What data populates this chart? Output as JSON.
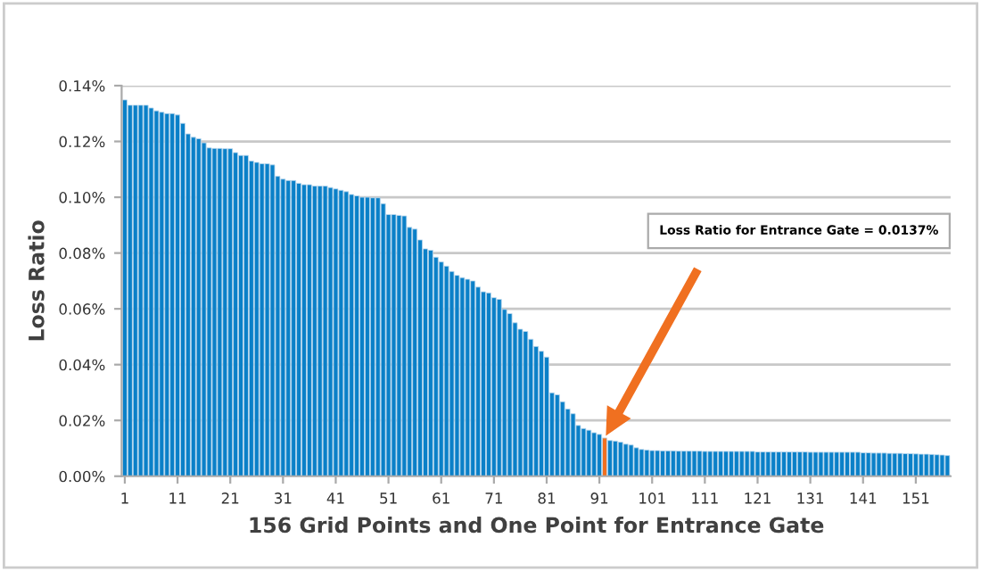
{
  "chart_data": {
    "type": "bar",
    "xlabel": "156 Grid Points and One Point for Entrance Gate",
    "ylabel": "Loss Ratio",
    "categories": [
      "1",
      null,
      null,
      null,
      null,
      null,
      null,
      null,
      null,
      null,
      "11",
      null,
      null,
      null,
      null,
      null,
      null,
      null,
      null,
      null,
      "21",
      null,
      null,
      null,
      null,
      null,
      null,
      null,
      null,
      null,
      "31",
      null,
      null,
      null,
      null,
      null,
      null,
      null,
      null,
      null,
      "41",
      null,
      null,
      null,
      null,
      null,
      null,
      null,
      null,
      null,
      "51",
      null,
      null,
      null,
      null,
      null,
      null,
      null,
      null,
      null,
      "61",
      null,
      null,
      null,
      null,
      null,
      null,
      null,
      null,
      null,
      "71",
      null,
      null,
      null,
      null,
      null,
      null,
      null,
      null,
      null,
      "81",
      null,
      null,
      null,
      null,
      null,
      null,
      null,
      null,
      null,
      "91",
      null,
      null,
      null,
      null,
      null,
      null,
      null,
      null,
      null,
      "101",
      null,
      null,
      null,
      null,
      null,
      null,
      null,
      null,
      null,
      "111",
      null,
      null,
      null,
      null,
      null,
      null,
      null,
      null,
      null,
      "121",
      null,
      null,
      null,
      null,
      null,
      null,
      null,
      null,
      null,
      "131",
      null,
      null,
      null,
      null,
      null,
      null,
      null,
      null,
      null,
      "141",
      null,
      null,
      null,
      null,
      null,
      null,
      null,
      null,
      null,
      "151",
      null,
      null,
      null,
      null,
      null,
      null
    ],
    "values": [
      0.1349,
      0.133,
      0.133,
      0.133,
      0.133,
      0.132,
      0.131,
      0.1305,
      0.13,
      0.13,
      0.1295,
      0.1265,
      0.1227,
      0.1215,
      0.121,
      0.1195,
      0.1177,
      0.1175,
      0.1175,
      0.1174,
      0.1174,
      0.116,
      0.115,
      0.115,
      0.113,
      0.1125,
      0.112,
      0.112,
      0.1116,
      0.1075,
      0.1065,
      0.106,
      0.106,
      0.105,
      0.1045,
      0.1045,
      0.104,
      0.104,
      0.104,
      0.1035,
      0.103,
      0.1025,
      0.102,
      0.101,
      0.1005,
      0.1,
      0.1,
      0.0998,
      0.0998,
      0.0977,
      0.0938,
      0.0938,
      0.0935,
      0.0933,
      0.0892,
      0.0886,
      0.0847,
      0.0815,
      0.081,
      0.0785,
      0.0768,
      0.0753,
      0.0734,
      0.072,
      0.0712,
      0.0706,
      0.07,
      0.0678,
      0.0661,
      0.0657,
      0.064,
      0.0634,
      0.0598,
      0.0583,
      0.055,
      0.0527,
      0.0519,
      0.0491,
      0.0465,
      0.0448,
      0.0427,
      0.0299,
      0.0292,
      0.0267,
      0.0241,
      0.0224,
      0.0182,
      0.0171,
      0.0165,
      0.0156,
      0.015,
      0.0137,
      0.0128,
      0.0126,
      0.0122,
      0.0115,
      0.0112,
      0.0102,
      0.0096,
      0.0094,
      0.0092,
      0.0092,
      0.0091,
      0.0091,
      0.0091,
      0.009,
      0.009,
      0.009,
      0.009,
      0.009,
      0.0089,
      0.0089,
      0.0089,
      0.0089,
      0.0089,
      0.0089,
      0.0089,
      0.0089,
      0.0089,
      0.0089,
      0.0087,
      0.0087,
      0.0087,
      0.0087,
      0.0087,
      0.0087,
      0.0087,
      0.0087,
      0.0087,
      0.0087,
      0.0086,
      0.0086,
      0.0086,
      0.0086,
      0.0086,
      0.0086,
      0.0086,
      0.0086,
      0.0086,
      0.0086,
      0.0084,
      0.0084,
      0.0083,
      0.0083,
      0.0083,
      0.0082,
      0.0082,
      0.0082,
      0.0081,
      0.0081,
      0.008,
      0.0079,
      0.0079,
      0.0078,
      0.0077,
      0.0076,
      0.0074
    ],
    "colors": [
      "#0a80c8",
      "#0a80c8",
      "#0a80c8",
      "#0a80c8",
      "#0a80c8",
      "#0a80c8",
      "#0a80c8",
      "#0a80c8",
      "#0a80c8",
      "#0a80c8",
      "#0a80c8",
      "#0a80c8",
      "#0a80c8",
      "#0a80c8",
      "#0a80c8",
      "#0a80c8",
      "#0a80c8",
      "#0a80c8",
      "#0a80c8",
      "#0a80c8",
      "#0a80c8",
      "#0a80c8",
      "#0a80c8",
      "#0a80c8",
      "#0a80c8",
      "#0a80c8",
      "#0a80c8",
      "#0a80c8",
      "#0a80c8",
      "#0a80c8",
      "#0a80c8",
      "#0a80c8",
      "#0a80c8",
      "#0a80c8",
      "#0a80c8",
      "#0a80c8",
      "#0a80c8",
      "#0a80c8",
      "#0a80c8",
      "#0a80c8",
      "#0a80c8",
      "#0a80c8",
      "#0a80c8",
      "#0a80c8",
      "#0a80c8",
      "#0a80c8",
      "#0a80c8",
      "#0a80c8",
      "#0a80c8",
      "#0a80c8",
      "#0a80c8",
      "#0a80c8",
      "#0a80c8",
      "#0a80c8",
      "#0a80c8",
      "#0a80c8",
      "#0a80c8",
      "#0a80c8",
      "#0a80c8",
      "#0a80c8",
      "#0a80c8",
      "#0a80c8",
      "#0a80c8",
      "#0a80c8",
      "#0a80c8",
      "#0a80c8",
      "#0a80c8",
      "#0a80c8",
      "#0a80c8",
      "#0a80c8",
      "#0a80c8",
      "#0a80c8",
      "#0a80c8",
      "#0a80c8",
      "#0a80c8",
      "#0a80c8",
      "#0a80c8",
      "#0a80c8",
      "#0a80c8",
      "#0a80c8",
      "#0a80c8",
      "#0a80c8",
      "#0a80c8",
      "#0a80c8",
      "#0a80c8",
      "#0a80c8",
      "#0a80c8",
      "#0a80c8",
      "#0a80c8",
      "#0a80c8",
      "#0a80c8",
      "#f07020",
      "#0a80c8",
      "#0a80c8",
      "#0a80c8",
      "#0a80c8",
      "#0a80c8",
      "#0a80c8",
      "#0a80c8",
      "#0a80c8",
      "#0a80c8",
      "#0a80c8",
      "#0a80c8",
      "#0a80c8",
      "#0a80c8",
      "#0a80c8",
      "#0a80c8",
      "#0a80c8",
      "#0a80c8",
      "#0a80c8",
      "#0a80c8",
      "#0a80c8",
      "#0a80c8",
      "#0a80c8",
      "#0a80c8",
      "#0a80c8",
      "#0a80c8",
      "#0a80c8",
      "#0a80c8",
      "#0a80c8",
      "#0a80c8",
      "#0a80c8",
      "#0a80c8",
      "#0a80c8",
      "#0a80c8",
      "#0a80c8",
      "#0a80c8",
      "#0a80c8",
      "#0a80c8",
      "#0a80c8",
      "#0a80c8",
      "#0a80c8",
      "#0a80c8",
      "#0a80c8",
      "#0a80c8",
      "#0a80c8",
      "#0a80c8",
      "#0a80c8",
      "#0a80c8",
      "#0a80c8",
      "#0a80c8",
      "#0a80c8",
      "#0a80c8",
      "#0a80c8",
      "#0a80c8",
      "#0a80c8",
      "#0a80c8",
      "#0a80c8",
      "#0a80c8",
      "#0a80c8",
      "#0a80c8",
      "#0a80c8",
      "#0a80c8",
      "#0a80c8",
      "#0a80c8",
      "#0a80c8",
      "#0a80c8"
    ],
    "ylim": [
      0,
      0.14
    ],
    "yticks": [
      {
        "value": 0,
        "label": "0.00%"
      },
      {
        "value": 0.02,
        "label": "0.02%"
      },
      {
        "value": 0.04,
        "label": "0.04%"
      },
      {
        "value": 0.06,
        "label": "0.06%"
      },
      {
        "value": 0.08,
        "label": "0.08%"
      },
      {
        "value": 0.1,
        "label": "0.10%"
      },
      {
        "value": 0.12,
        "label": "0.12%"
      },
      {
        "value": 0.14,
        "label": "0.14%"
      }
    ],
    "grid": "y",
    "annotations": [
      "Loss Ratio for Entrance Gate = 0.0137%"
    ]
  }
}
